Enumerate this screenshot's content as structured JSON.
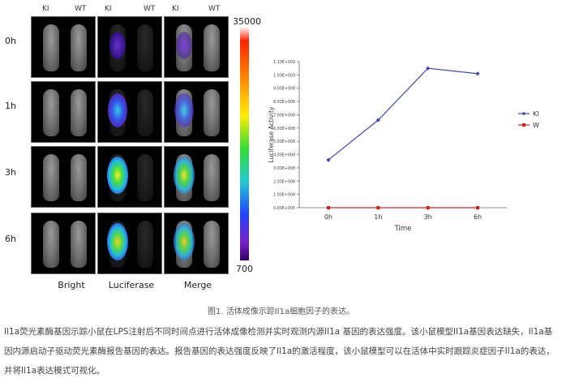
{
  "figure": {
    "row_labels": [
      "0h",
      "1h",
      "3h",
      "6h"
    ],
    "col_heads": [
      "KI",
      "WT",
      "KI",
      "WT",
      "KI",
      "WT"
    ],
    "bottom_labels": [
      "Bright",
      "Luciferase",
      "Merge"
    ],
    "scale_max": "35000",
    "scale_min": "700"
  },
  "chart_data": {
    "type": "line",
    "categories": [
      "0h",
      "1h",
      "3h",
      "6h"
    ],
    "xlabel": "Time",
    "ylabel": "Luciferase Activity",
    "y_ticks": [
      "0.00E+000",
      "1.00E+008",
      "2.00E+008",
      "3.00E+008",
      "4.00E+008",
      "5.00E+008",
      "6.00E+008",
      "7.00E+008",
      "8.00E+008",
      "9.00E+008",
      "1.00E+009",
      "1.10E+009"
    ],
    "ylim": [
      0,
      1100000000
    ],
    "series": [
      {
        "name": "KI",
        "values": [
          360000000,
          660000000,
          1050000000,
          1010000000
        ],
        "color": "#4a4aa8",
        "marker": "diamond"
      },
      {
        "name": "WT",
        "values": [
          0,
          0,
          0,
          0
        ],
        "color": "#cc2222",
        "marker": "square"
      }
    ],
    "legend_placement": "right"
  },
  "caption": "图1. 活体成像示踪Il1a细胞因子的表达。",
  "paragraph": "Il1a荧光素酶基因示踪小鼠在LPS注射后不同时间点进行活体成像检测并实时观测内源Il1a 基因的表达强度。该小鼠模型Il1a基因表达缺失，Il1a基因内源启动子驱动荧光素酶报告基因的表达。报告基因的表达强度反映了Il1a的激活程度，该小鼠模型可以在活体中实时跟踪炎症因子Il1a的表达，并将Il1a表达模式可视化。"
}
